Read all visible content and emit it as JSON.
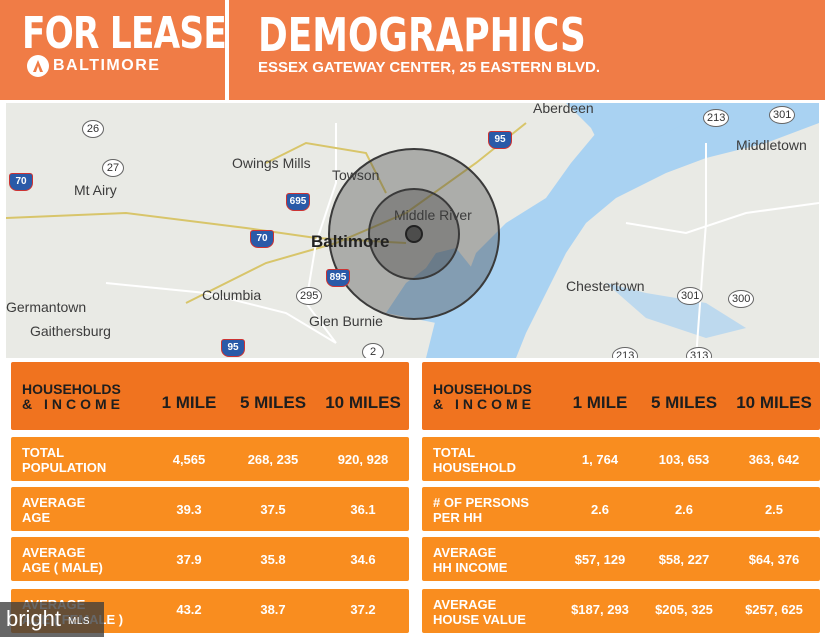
{
  "header": {
    "title": "FOR LEASE",
    "logo_text": "BALTIMORE",
    "section_title": "DEMOGRAPHICS",
    "address": "ESSEX GATEWAY CENTER, 25 EASTERN BLVD."
  },
  "map": {
    "labels": {
      "aberdeen": "Aberdeen",
      "middletown": "Middletown",
      "owings_mills": "Owings Mills",
      "towson": "Towson",
      "mt_airy": "Mt Airy",
      "middle_river": "Middle River",
      "baltimore": "Baltimore",
      "columbia": "Columbia",
      "chestertown": "Chestertown",
      "germantown": "Germantown",
      "gaithersburg": "Gaithersburg",
      "glen_burnie": "Glen Burnie"
    },
    "shields": {
      "r26": "26",
      "r27": "27",
      "r70": "70",
      "r695": "695",
      "r95a": "95",
      "r213a": "213",
      "r301a": "301",
      "r70b": "70",
      "r895": "895",
      "r295": "295",
      "r2": "2",
      "r95b": "95",
      "r301b": "301",
      "r300": "300",
      "r213b": "213",
      "r313": "313"
    },
    "colors": {
      "land": "#e9eae5",
      "water": "#a9d2f2",
      "rings": "#3a3a3a"
    }
  },
  "left_table": {
    "header": {
      "line1": "HOUSEHOLDS",
      "line2": "& INCOME",
      "col1": "1 MILE",
      "col2": "5 MILES",
      "col3": "10 MILES"
    },
    "rows": [
      {
        "line1": "TOTAL",
        "line2": "POPULATION",
        "v1": "4,565",
        "v2": "268, 235",
        "v3": "920, 928"
      },
      {
        "line1": "AVERAGE",
        "line2": "AGE",
        "v1": "39.3",
        "v2": "37.5",
        "v3": "36.1"
      },
      {
        "line1": "AVERAGE",
        "line2": "AGE ( MALE)",
        "v1": "37.9",
        "v2": "35.8",
        "v3": "34.6"
      },
      {
        "line1": "AVERAGE",
        "line2": "AGE ( FEMALE )",
        "v1": "43.2",
        "v2": "38.7",
        "v3": "37.2"
      }
    ]
  },
  "right_table": {
    "header": {
      "line1": "HOUSEHOLDS",
      "line2": "& INCOME",
      "col1": "1 MILE",
      "col2": "5 MILES",
      "col3": "10 MILES"
    },
    "rows": [
      {
        "line1": "TOTAL",
        "line2": "HOUSEHOLD",
        "v1": "1, 764",
        "v2": "103, 653",
        "v3": "363, 642"
      },
      {
        "line1": "# OF PERSONS",
        "line2": "PER HH",
        "v1": "2.6",
        "v2": "2.6",
        "v3": "2.5"
      },
      {
        "line1": "AVERAGE",
        "line2": "HH INCOME",
        "v1": "$57, 129",
        "v2": "$58, 227",
        "v3": "$64, 376"
      },
      {
        "line1": "AVERAGE",
        "line2": "HOUSE VALUE",
        "v1": "$187, 293",
        "v2": "$205, 325",
        "v3": "$257, 625"
      }
    ]
  },
  "watermark": {
    "brand": "bright",
    "suffix": "MLS"
  },
  "colors": {
    "header_orange": "#f07c46",
    "row_orange": "#f98d1f",
    "header_row_orange": "#f0731f"
  }
}
